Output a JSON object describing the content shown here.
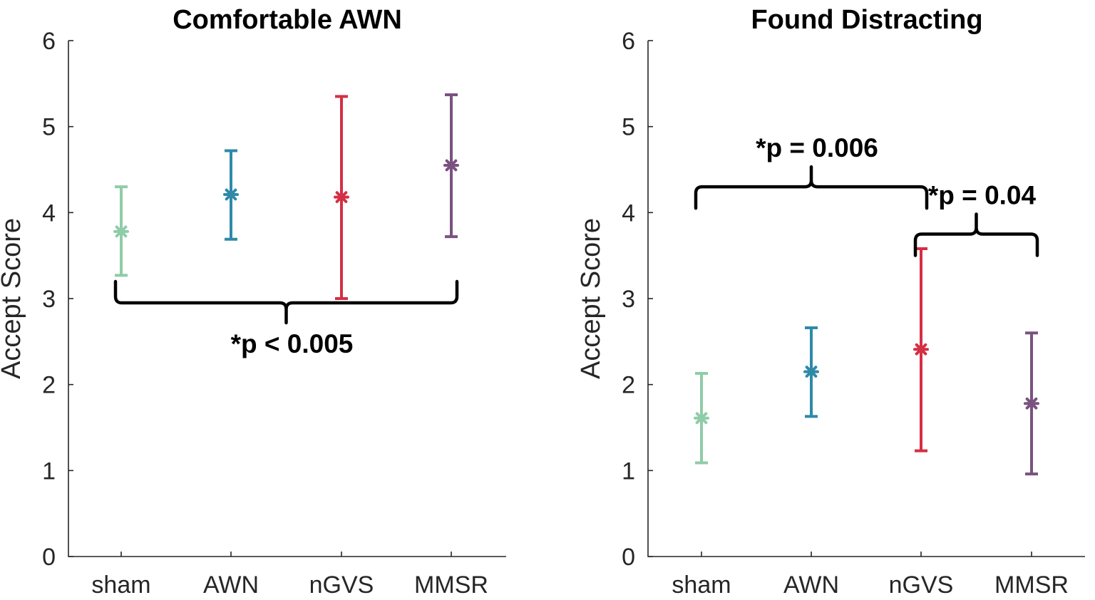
{
  "chart_data": [
    {
      "type": "scatter",
      "title": "Comfortable AWN",
      "xlabel": "",
      "ylabel": "Accept Score",
      "categories": [
        "sham",
        "AWN",
        "nGVS",
        "MMSR"
      ],
      "ylim": [
        0,
        6
      ],
      "yticks": [
        "0",
        "1",
        "2",
        "3",
        "4",
        "5",
        "6"
      ],
      "series": [
        {
          "name": "sham",
          "mean": 3.78,
          "lower": 3.27,
          "upper": 4.3,
          "color": "#8fcca8"
        },
        {
          "name": "AWN",
          "mean": 4.21,
          "lower": 3.69,
          "upper": 4.72,
          "color": "#2e8aa8"
        },
        {
          "name": "nGVS",
          "mean": 4.18,
          "lower": 3.0,
          "upper": 5.35,
          "color": "#d42f44"
        },
        {
          "name": "MMSR",
          "mean": 4.55,
          "lower": 3.72,
          "upper": 5.37,
          "color": "#7a5280"
        }
      ],
      "annotations": [
        {
          "text": "*p < 0.005",
          "from": "sham",
          "to": "MMSR",
          "y": 2.95,
          "direction": "down"
        }
      ]
    },
    {
      "type": "scatter",
      "title": "Found Distracting",
      "xlabel": "",
      "ylabel": "Accept Score",
      "categories": [
        "sham",
        "AWN",
        "nGVS",
        "MMSR"
      ],
      "ylim": [
        0,
        6
      ],
      "yticks": [
        "0",
        "1",
        "2",
        "3",
        "4",
        "5",
        "6"
      ],
      "series": [
        {
          "name": "sham",
          "mean": 1.61,
          "lower": 1.09,
          "upper": 2.13,
          "color": "#8fcca8"
        },
        {
          "name": "AWN",
          "mean": 2.15,
          "lower": 1.63,
          "upper": 2.66,
          "color": "#2e8aa8"
        },
        {
          "name": "nGVS",
          "mean": 2.41,
          "lower": 1.23,
          "upper": 3.58,
          "color": "#d42f44"
        },
        {
          "name": "MMSR",
          "mean": 1.78,
          "lower": 0.96,
          "upper": 2.6,
          "color": "#7a5280"
        }
      ],
      "annotations": [
        {
          "text": "*p = 0.006",
          "from": "sham",
          "to": "nGVS",
          "y": 4.3,
          "direction": "up"
        },
        {
          "text": "*p = 0.04",
          "from": "nGVS",
          "to": "MMSR",
          "y": 3.75,
          "direction": "up"
        }
      ]
    }
  ]
}
